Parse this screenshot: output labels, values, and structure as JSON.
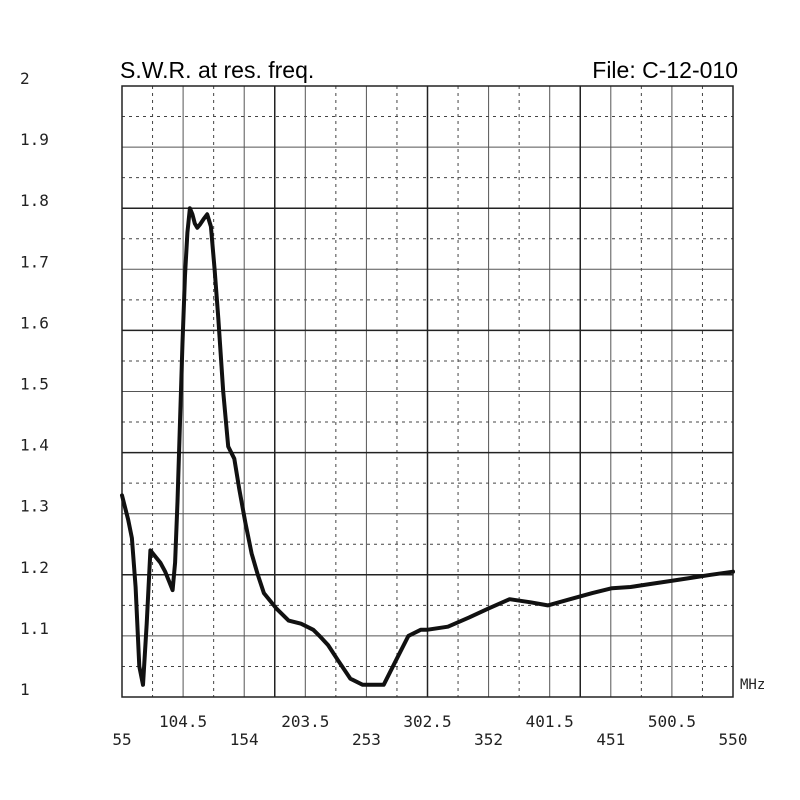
{
  "chart_data": {
    "type": "line",
    "title": "S.W.R. at res. freq.",
    "file_label": "File:  C-12-010",
    "xunit": "MHz",
    "xlim": [
      55,
      550
    ],
    "ylim": [
      1,
      2
    ],
    "yticks": [
      "2",
      "1.9",
      "1.8",
      "1.7",
      "1.6",
      "1.5",
      "1.4",
      "1.3",
      "1.2",
      "1.1",
      "1"
    ],
    "xticks_upper": [
      "104.5",
      "203.5",
      "302.5",
      "401.5",
      "500.5"
    ],
    "xticks_lower": [
      "55",
      "154",
      "253",
      "352",
      "451",
      "550"
    ],
    "grid": true,
    "legend": "none",
    "series": [
      {
        "color": "#111111",
        "x": [
          55,
          60,
          63,
          66,
          69,
          72,
          75,
          78,
          82,
          86,
          90,
          93,
          96,
          98,
          100,
          102,
          104,
          106,
          108,
          110,
          112,
          114,
          116,
          118,
          121,
          124,
          127,
          130,
          133,
          137,
          141,
          146,
          150,
          155,
          160,
          165,
          170,
          180,
          190,
          200,
          210,
          215,
          222,
          230,
          240,
          250,
          253,
          259,
          267,
          277,
          287,
          297,
          302,
          319,
          336,
          352,
          369,
          386,
          400,
          418,
          436,
          452,
          467,
          483,
          500,
          516,
          532,
          550
        ],
        "y": [
          1.33,
          1.29,
          1.26,
          1.18,
          1.05,
          1.02,
          1.12,
          1.24,
          1.23,
          1.22,
          1.205,
          1.19,
          1.175,
          1.22,
          1.32,
          1.45,
          1.58,
          1.69,
          1.76,
          1.8,
          1.79,
          1.775,
          1.768,
          1.773,
          1.782,
          1.79,
          1.77,
          1.7,
          1.62,
          1.5,
          1.41,
          1.39,
          1.34,
          1.285,
          1.235,
          1.2,
          1.17,
          1.145,
          1.125,
          1.12,
          1.11,
          1.1,
          1.085,
          1.06,
          1.03,
          1.02,
          1.02,
          1.02,
          1.02,
          1.06,
          1.1,
          1.11,
          1.11,
          1.115,
          1.13,
          1.145,
          1.16,
          1.155,
          1.15,
          1.16,
          1.17,
          1.178,
          1.18,
          1.185,
          1.19,
          1.195,
          1.2,
          1.205
        ]
      }
    ]
  }
}
